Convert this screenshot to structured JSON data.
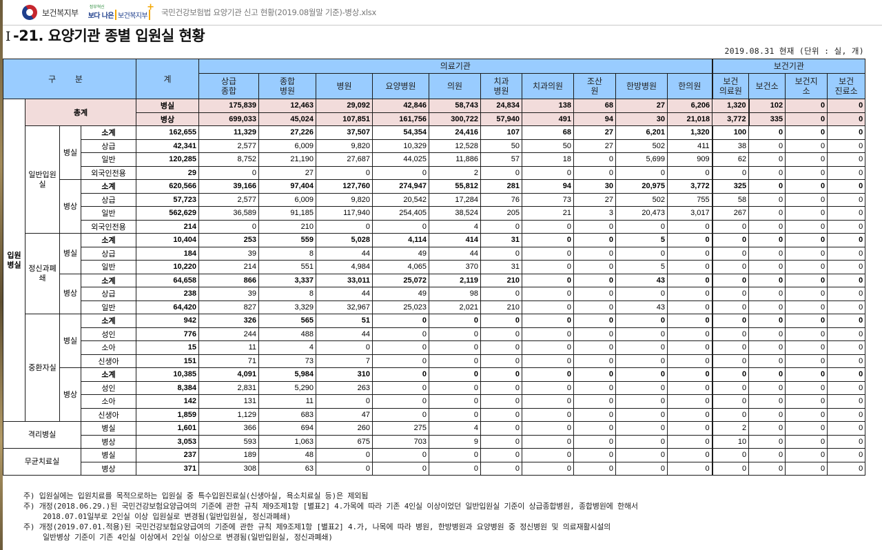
{
  "header": {
    "ministry_name": "보건복지부",
    "slogan_small": "정부혁신",
    "slogan_bold": "보다 나은",
    "slogan_bracket": "보건복지부",
    "filename": "국민건강보험법 요양기관 신고 현황(2019.08월말 기준)-병상.xlsx"
  },
  "page": {
    "title_prefix": "Ⅰ",
    "title": "-21. 요양기관 종별 입원실 현황",
    "unit_note": "2019.08.31 현재 (단위 : 실, 개)"
  },
  "table": {
    "header": {
      "category": "구  분",
      "total": "계",
      "group_medical": "의료기관",
      "group_health": "보건기관",
      "columns": [
        "상급\n종합",
        "종합\n병원",
        "병원",
        "요양병원",
        "의원",
        "치과\n병원",
        "치과의원",
        "조산\n원",
        "한방병원",
        "한의원",
        "보건\n의료원",
        "보건소",
        "보건지\n소",
        "보건\n진료소"
      ]
    },
    "row_groups": {
      "grand": "총계",
      "inpatient": "입원병실",
      "general": "일반입원실",
      "psych": "정신과폐쇄",
      "icu": "중환자실",
      "isolation": "격리병실",
      "sterile": "무균치료실",
      "rooms": "병실",
      "beds": "병상"
    },
    "rows": [
      {
        "label": "병실",
        "bold": true,
        "pink": true,
        "total": "175,839",
        "values": [
          "12,463",
          "29,092",
          "42,846",
          "58,743",
          "24,834",
          "138",
          "68",
          "27",
          "6,206",
          "1,320",
          "102",
          "0",
          "0",
          "0"
        ]
      },
      {
        "label": "병상",
        "bold": true,
        "pink": true,
        "total": "699,033",
        "values": [
          "45,024",
          "107,851",
          "161,756",
          "300,722",
          "57,940",
          "491",
          "94",
          "30",
          "21,018",
          "3,772",
          "335",
          "0",
          "0",
          "0"
        ]
      },
      {
        "label": "소계",
        "bold": true,
        "total": "162,655",
        "values": [
          "11,329",
          "27,226",
          "37,507",
          "54,354",
          "24,416",
          "107",
          "68",
          "27",
          "6,201",
          "1,320",
          "100",
          "0",
          "0",
          "0"
        ]
      },
      {
        "label": "상급",
        "bold": false,
        "total": "42,341",
        "values": [
          "2,577",
          "6,009",
          "9,820",
          "10,329",
          "12,528",
          "50",
          "50",
          "27",
          "502",
          "411",
          "38",
          "0",
          "0",
          "0"
        ]
      },
      {
        "label": "일반",
        "bold": false,
        "total": "120,285",
        "values": [
          "8,752",
          "21,190",
          "27,687",
          "44,025",
          "11,886",
          "57",
          "18",
          "0",
          "5,699",
          "909",
          "62",
          "0",
          "0",
          "0"
        ]
      },
      {
        "label": "외국인전용",
        "bold": false,
        "total": "29",
        "values": [
          "0",
          "27",
          "0",
          "0",
          "2",
          "0",
          "0",
          "0",
          "0",
          "0",
          "0",
          "0",
          "0",
          "0"
        ]
      },
      {
        "label": "소계",
        "bold": true,
        "total": "620,566",
        "values": [
          "39,166",
          "97,404",
          "127,760",
          "274,947",
          "55,812",
          "281",
          "94",
          "30",
          "20,975",
          "3,772",
          "325",
          "0",
          "0",
          "0"
        ]
      },
      {
        "label": "상급",
        "bold": false,
        "total": "57,723",
        "values": [
          "2,577",
          "6,009",
          "9,820",
          "20,542",
          "17,284",
          "76",
          "73",
          "27",
          "502",
          "755",
          "58",
          "0",
          "0",
          "0"
        ]
      },
      {
        "label": "일반",
        "bold": false,
        "total": "562,629",
        "values": [
          "36,589",
          "91,185",
          "117,940",
          "254,405",
          "38,524",
          "205",
          "21",
          "3",
          "20,473",
          "3,017",
          "267",
          "0",
          "0",
          "0"
        ]
      },
      {
        "label": "외국인전용",
        "bold": false,
        "total": "214",
        "values": [
          "0",
          "210",
          "0",
          "0",
          "4",
          "0",
          "0",
          "0",
          "0",
          "0",
          "0",
          "0",
          "0",
          "0"
        ]
      },
      {
        "label": "소계",
        "bold": true,
        "total": "10,404",
        "values": [
          "253",
          "559",
          "5,028",
          "4,114",
          "414",
          "31",
          "0",
          "0",
          "5",
          "0",
          "0",
          "0",
          "0",
          "0"
        ]
      },
      {
        "label": "상급",
        "bold": false,
        "total": "184",
        "values": [
          "39",
          "8",
          "44",
          "49",
          "44",
          "0",
          "0",
          "0",
          "0",
          "0",
          "0",
          "0",
          "0",
          "0"
        ]
      },
      {
        "label": "일반",
        "bold": false,
        "total": "10,220",
        "values": [
          "214",
          "551",
          "4,984",
          "4,065",
          "370",
          "31",
          "0",
          "0",
          "5",
          "0",
          "0",
          "0",
          "0",
          "0"
        ]
      },
      {
        "label": "소계",
        "bold": true,
        "total": "64,658",
        "values": [
          "866",
          "3,337",
          "33,011",
          "25,072",
          "2,119",
          "210",
          "0",
          "0",
          "43",
          "0",
          "0",
          "0",
          "0",
          "0"
        ]
      },
      {
        "label": "상급",
        "bold": false,
        "total": "238",
        "values": [
          "39",
          "8",
          "44",
          "49",
          "98",
          "0",
          "0",
          "0",
          "0",
          "0",
          "0",
          "0",
          "0",
          "0"
        ]
      },
      {
        "label": "일반",
        "bold": false,
        "total": "64,420",
        "values": [
          "827",
          "3,329",
          "32,967",
          "25,023",
          "2,021",
          "210",
          "0",
          "0",
          "43",
          "0",
          "0",
          "0",
          "0",
          "0"
        ]
      },
      {
        "label": "소계",
        "bold": true,
        "total": "942",
        "values": [
          "326",
          "565",
          "51",
          "0",
          "0",
          "0",
          "0",
          "0",
          "0",
          "0",
          "0",
          "0",
          "0",
          "0"
        ]
      },
      {
        "label": "성인",
        "bold": false,
        "total": "776",
        "values": [
          "244",
          "488",
          "44",
          "0",
          "0",
          "0",
          "0",
          "0",
          "0",
          "0",
          "0",
          "0",
          "0",
          "0"
        ]
      },
      {
        "label": "소아",
        "bold": false,
        "total": "15",
        "values": [
          "11",
          "4",
          "0",
          "0",
          "0",
          "0",
          "0",
          "0",
          "0",
          "0",
          "0",
          "0",
          "0",
          "0"
        ]
      },
      {
        "label": "신생아",
        "bold": false,
        "total": "151",
        "values": [
          "71",
          "73",
          "7",
          "0",
          "0",
          "0",
          "0",
          "0",
          "0",
          "0",
          "0",
          "0",
          "0",
          "0"
        ]
      },
      {
        "label": "소계",
        "bold": true,
        "total": "10,385",
        "values": [
          "4,091",
          "5,984",
          "310",
          "0",
          "0",
          "0",
          "0",
          "0",
          "0",
          "0",
          "0",
          "0",
          "0",
          "0"
        ]
      },
      {
        "label": "성인",
        "bold": false,
        "total": "8,384",
        "values": [
          "2,831",
          "5,290",
          "263",
          "0",
          "0",
          "0",
          "0",
          "0",
          "0",
          "0",
          "0",
          "0",
          "0",
          "0"
        ]
      },
      {
        "label": "소아",
        "bold": false,
        "total": "142",
        "values": [
          "131",
          "11",
          "0",
          "0",
          "0",
          "0",
          "0",
          "0",
          "0",
          "0",
          "0",
          "0",
          "0",
          "0"
        ]
      },
      {
        "label": "신생아",
        "bold": false,
        "total": "1,859",
        "values": [
          "1,129",
          "683",
          "47",
          "0",
          "0",
          "0",
          "0",
          "0",
          "0",
          "0",
          "0",
          "0",
          "0",
          "0"
        ]
      },
      {
        "label": "병실",
        "bold": false,
        "total": "1,601",
        "values": [
          "366",
          "694",
          "260",
          "275",
          "4",
          "0",
          "0",
          "0",
          "0",
          "0",
          "2",
          "0",
          "0",
          "0"
        ]
      },
      {
        "label": "병상",
        "bold": false,
        "total": "3,053",
        "values": [
          "593",
          "1,063",
          "675",
          "703",
          "9",
          "0",
          "0",
          "0",
          "0",
          "0",
          "10",
          "0",
          "0",
          "0"
        ]
      },
      {
        "label": "병실",
        "bold": false,
        "total": "237",
        "values": [
          "189",
          "48",
          "0",
          "0",
          "0",
          "0",
          "0",
          "0",
          "0",
          "0",
          "0",
          "0",
          "0",
          "0"
        ]
      },
      {
        "label": "병상",
        "bold": false,
        "total": "371",
        "values": [
          "308",
          "63",
          "0",
          "0",
          "0",
          "0",
          "0",
          "0",
          "0",
          "0",
          "0",
          "0",
          "0",
          "0"
        ]
      }
    ]
  },
  "notes": [
    "주) 입원실에는 입원치료를 목적으로하는 입원실 중 특수입원진료실(신생아실, 욕소치료실 등)은 제외됨",
    "주) 개정(2018.06.29.)된 국민건강보험요양급여의 기준에 관한 규칙 제9조제1항 [별표2] 4.가목에 따라 기존 4인실 이상이었던 일반입원실 기준이 상급종합병원, 종합병원에 한해서",
    "2018.07.01일부로 2인실 이상 입원실로 변경됨(일반입원실, 정신과폐쇄)",
    "주) 개정(2019.07.01.적용)된 국민건강보험요양급여의 기준에 관한 규칙 제9조제1항 [별표2] 4.가, 나목에 따라 병원, 한방병원과 요양병원 중 정신병원 및 의료재활시설의",
    "일반병상 기준이 기존 4인실 이상에서 2인실 이상으로 변경됨(일반입원실, 정신과폐쇄)"
  ]
}
